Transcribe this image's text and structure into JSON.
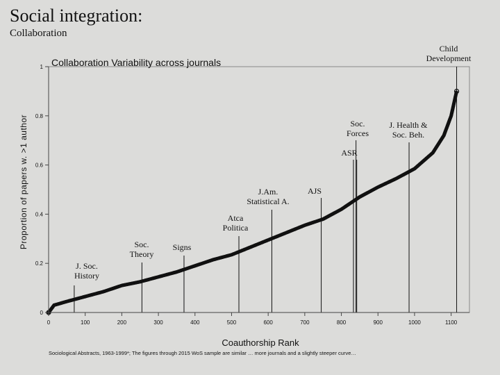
{
  "slide": {
    "title": "Social integration:",
    "subtitle": "Collaboration",
    "footnote": "Sociological Abstracts, 1963-1999*; The figures through 2015 WoS sample are similar … more journals and a slightly steeper curve…"
  },
  "chart_data": {
    "type": "scatter",
    "title": "Collaboration Variability across journals",
    "xlabel": "Coauthorship Rank",
    "ylabel": "Proportion of papers w. >1 author",
    "xlim": [
      0,
      1150
    ],
    "ylim": [
      0,
      1
    ],
    "xticks": [
      0,
      100,
      200,
      300,
      400,
      500,
      600,
      700,
      800,
      900,
      1000,
      1100
    ],
    "yticks": [
      {
        "value": 0,
        "label": "0"
      },
      {
        "value": 0.2,
        "label": "0.2"
      },
      {
        "value": 0.4,
        "label": "0.4"
      },
      {
        "value": 0.6,
        "label": "0.6"
      },
      {
        "value": 0.8,
        "label": "0.8"
      },
      {
        "value": 1,
        "label": "1"
      }
    ],
    "grid": false,
    "curve_points": [
      [
        0,
        0
      ],
      [
        5,
        0.01
      ],
      [
        15,
        0.03
      ],
      [
        50,
        0.045
      ],
      [
        100,
        0.065
      ],
      [
        150,
        0.085
      ],
      [
        200,
        0.11
      ],
      [
        250,
        0.125
      ],
      [
        300,
        0.145
      ],
      [
        350,
        0.165
      ],
      [
        400,
        0.19
      ],
      [
        450,
        0.215
      ],
      [
        500,
        0.235
      ],
      [
        550,
        0.265
      ],
      [
        600,
        0.295
      ],
      [
        650,
        0.325
      ],
      [
        700,
        0.355
      ],
      [
        750,
        0.38
      ],
      [
        800,
        0.42
      ],
      [
        850,
        0.47
      ],
      [
        900,
        0.51
      ],
      [
        950,
        0.545
      ],
      [
        1000,
        0.585
      ],
      [
        1050,
        0.65
      ],
      [
        1080,
        0.72
      ],
      [
        1100,
        0.8
      ],
      [
        1115,
        0.9
      ]
    ],
    "annotations": [
      {
        "id": "j-soc-history",
        "x": 70,
        "y": 0.055,
        "lines": [
          "J. Soc.",
          "History"
        ]
      },
      {
        "id": "soc-theory",
        "x": 255,
        "y": 0.125,
        "lines": [
          "Soc.",
          "Theory"
        ]
      },
      {
        "id": "signs",
        "x": 370,
        "y": 0.175,
        "lines": [
          "Signs"
        ]
      },
      {
        "id": "acta-politica",
        "x": 520,
        "y": 0.245,
        "lines": [
          "Atca",
          "Politica"
        ]
      },
      {
        "id": "j-am-statistical-a",
        "x": 610,
        "y": 0.3,
        "lines": [
          "J.Am.",
          "Statistical A."
        ]
      },
      {
        "id": "ajs",
        "x": 745,
        "y": 0.37,
        "lines": [
          "AJS"
        ]
      },
      {
        "id": "asr",
        "x": 833,
        "y": 0.46,
        "lines": [
          "ASR"
        ]
      },
      {
        "id": "soc-forces",
        "x": 840,
        "y": 0.47,
        "lines": [
          "Soc.",
          "Forces"
        ]
      },
      {
        "id": "j-health-soc-beh",
        "x": 985,
        "y": 0.605,
        "lines": [
          "J. Health &",
          "Soc. Beh."
        ]
      },
      {
        "id": "child-development",
        "x": 1115,
        "y": 0.9,
        "lines": [
          "Child",
          "Development"
        ]
      }
    ]
  }
}
